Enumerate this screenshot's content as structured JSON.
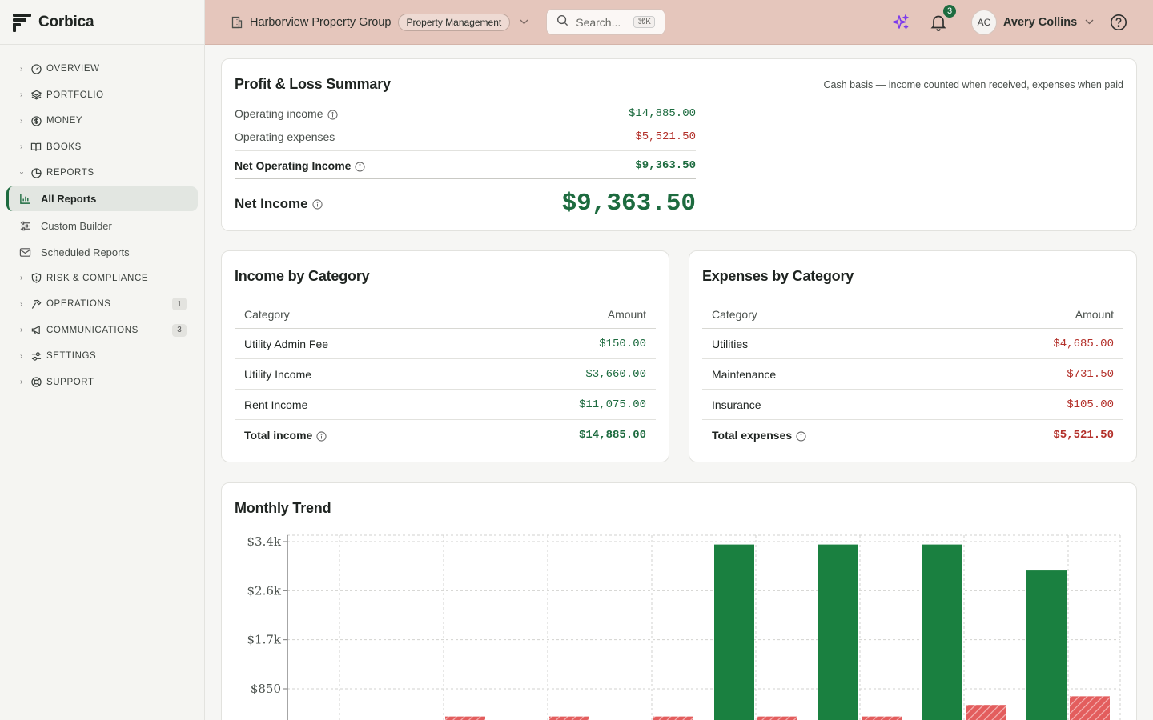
{
  "brand": {
    "name": "Corbica"
  },
  "nav": {
    "groups_top": [
      {
        "label": "OVERVIEW",
        "icon": "gauge-icon"
      },
      {
        "label": "PORTFOLIO",
        "icon": "layers-icon"
      },
      {
        "label": "MONEY",
        "icon": "dollar-icon"
      },
      {
        "label": "BOOKS",
        "icon": "book-icon"
      },
      {
        "label": "REPORTS",
        "icon": "pie-icon"
      }
    ],
    "reports_items": [
      {
        "label": "All Reports",
        "icon": "bar-chart-icon",
        "active": true
      },
      {
        "label": "Custom Builder",
        "icon": "sliders-icon"
      },
      {
        "label": "Scheduled Reports",
        "icon": "mail-icon"
      }
    ],
    "groups_bottom": [
      {
        "label": "RISK & COMPLIANCE",
        "icon": "shield-icon",
        "badge": ""
      },
      {
        "label": "OPERATIONS",
        "icon": "hammer-icon",
        "badge": "1"
      },
      {
        "label": "COMMUNICATIONS",
        "icon": "megaphone-icon",
        "badge": "3"
      },
      {
        "label": "SETTINGS",
        "icon": "settings-icon",
        "badge": ""
      },
      {
        "label": "SUPPORT",
        "icon": "lifebuoy-icon",
        "badge": ""
      }
    ]
  },
  "header": {
    "org_name": "Harborview Property Group",
    "org_tag": "Property Management",
    "search_placeholder": "Search...",
    "search_shortcut": "⌘K",
    "notification_count": "3",
    "user_initials": "AC",
    "user_name": "Avery Collins",
    "colors": {
      "header_bg": "#e5c6bc",
      "accent": "#1d6b3f",
      "negative": "#b3302a"
    }
  },
  "pl": {
    "title": "Profit & Loss Summary",
    "note": "Cash basis — income counted when received, expenses when paid",
    "operating_income_label": "Operating income",
    "operating_income": "$14,885.00",
    "operating_expenses_label": "Operating expenses",
    "operating_expenses": "$5,521.50",
    "noi_label": "Net Operating Income",
    "noi": "$9,363.50",
    "net_income_label": "Net Income",
    "net_income": "$9,363.50"
  },
  "income": {
    "title": "Income by Category",
    "col_category": "Category",
    "col_amount": "Amount",
    "rows": [
      {
        "category": "Utility Admin Fee",
        "amount": "$150.00"
      },
      {
        "category": "Utility Income",
        "amount": "$3,660.00"
      },
      {
        "category": "Rent Income",
        "amount": "$11,075.00"
      }
    ],
    "total_label": "Total income",
    "total": "$14,885.00"
  },
  "expenses": {
    "title": "Expenses by Category",
    "col_category": "Category",
    "col_amount": "Amount",
    "rows": [
      {
        "category": "Utilities",
        "amount": "$4,685.00"
      },
      {
        "category": "Maintenance",
        "amount": "$731.50"
      },
      {
        "category": "Insurance",
        "amount": "$105.00"
      }
    ],
    "total_label": "Total expenses",
    "total": "$5,521.50"
  },
  "trend": {
    "title": "Monthly Trend"
  },
  "chart_data": {
    "type": "bar",
    "title": "Monthly Trend",
    "y_ticks": [
      "$3.4k",
      "$2.6k",
      "$1.7k",
      "$850"
    ],
    "y_tick_values": [
      3400,
      2550,
      1700,
      850
    ],
    "ylim": [
      0,
      3400
    ],
    "grid": true,
    "series": [
      {
        "color": "#1a8040",
        "pattern": "solid",
        "values": [
          null,
          300,
          300,
          300,
          3350,
          3350,
          3350,
          2900
        ]
      },
      {
        "color": "#e05555",
        "pattern": "hatched",
        "values": [
          null,
          370,
          370,
          370,
          370,
          370,
          570,
          720
        ]
      }
    ]
  }
}
